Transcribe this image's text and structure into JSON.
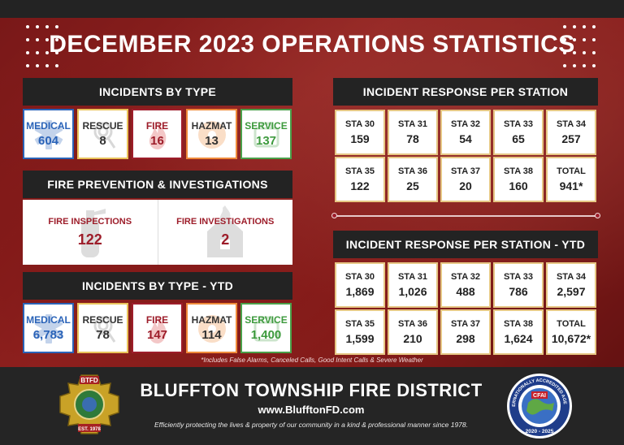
{
  "title": "DECEMBER 2023 OPERATIONS STATISTICS",
  "incidents_by_type": {
    "header": "INCIDENTS BY TYPE",
    "items": [
      {
        "label": "MEDICAL",
        "value": "604"
      },
      {
        "label": "RESCUE",
        "value": "8"
      },
      {
        "label": "FIRE",
        "value": "16"
      },
      {
        "label": "HAZMAT",
        "value": "13"
      },
      {
        "label": "SERVICE",
        "value": "137"
      }
    ]
  },
  "prevention": {
    "header": "FIRE PREVENTION & INVESTIGATIONS",
    "inspections_label": "FIRE INSPECTIONS",
    "inspections_value": "122",
    "investigations_label": "FIRE INVESTIGATIONS",
    "investigations_value": "2"
  },
  "incidents_by_type_ytd": {
    "header": "INCIDENTS BY TYPE - YTD",
    "items": [
      {
        "label": "MEDICAL",
        "value": "6,783"
      },
      {
        "label": "RESCUE",
        "value": "78"
      },
      {
        "label": "FIRE",
        "value": "147"
      },
      {
        "label": "HAZMAT",
        "value": "114"
      },
      {
        "label": "SERVICE",
        "value": "1,400"
      }
    ]
  },
  "station_response": {
    "header": "INCIDENT RESPONSE PER STATION",
    "cells": [
      {
        "label": "STA 30",
        "value": "159"
      },
      {
        "label": "STA 31",
        "value": "78"
      },
      {
        "label": "STA 32",
        "value": "54"
      },
      {
        "label": "STA 33",
        "value": "65"
      },
      {
        "label": "STA 34",
        "value": "257"
      },
      {
        "label": "STA 35",
        "value": "122"
      },
      {
        "label": "STA 36",
        "value": "25"
      },
      {
        "label": "STA 37",
        "value": "20"
      },
      {
        "label": "STA 38",
        "value": "160"
      },
      {
        "label": "TOTAL",
        "value": "941*"
      }
    ]
  },
  "station_response_ytd": {
    "header": "INCIDENT RESPONSE PER STATION - YTD",
    "cells": [
      {
        "label": "STA 30",
        "value": "1,869"
      },
      {
        "label": "STA 31",
        "value": "1,026"
      },
      {
        "label": "STA 32",
        "value": "488"
      },
      {
        "label": "STA 33",
        "value": "786"
      },
      {
        "label": "STA 34",
        "value": "2,597"
      },
      {
        "label": "STA 35",
        "value": "1,599"
      },
      {
        "label": "STA 36",
        "value": "210"
      },
      {
        "label": "STA 37",
        "value": "298"
      },
      {
        "label": "STA 38",
        "value": "1,624"
      },
      {
        "label": "TOTAL",
        "value": "10,672*"
      }
    ]
  },
  "footnote": "*Includes False Alarms, Canceled Calls, Good Intent Calls & Severe Weather",
  "footer": {
    "org_name": "BLUFFTON TOWNSHIP FIRE DISTRICT",
    "url": "www.BlufftonFD.com",
    "tagline": "Efficiently protecting the lives & property of our community in a kind & professional manner since 1978."
  },
  "logos": {
    "left_badge_top": "BTFD",
    "left_badge_bottom": "EST. 1978",
    "right_badge_ring": "INTERNATIONALLY ACCREDITED AGENCY",
    "right_badge_center": "CFAI",
    "right_badge_years": "2020 - 2025"
  },
  "colors": {
    "header_bg": "#232323",
    "medical": "#2a63b8",
    "rescue": "#e9c35a",
    "fire": "#9d1d2a",
    "hazmat": "#ef8a3a",
    "service": "#4aa04a",
    "station_border": "#e6c784"
  },
  "icons": [
    "star-of-life-icon",
    "rope-icon",
    "flame-icon",
    "hazmat-icon",
    "service-icon",
    "extinguisher-icon",
    "house-fire-icon"
  ]
}
